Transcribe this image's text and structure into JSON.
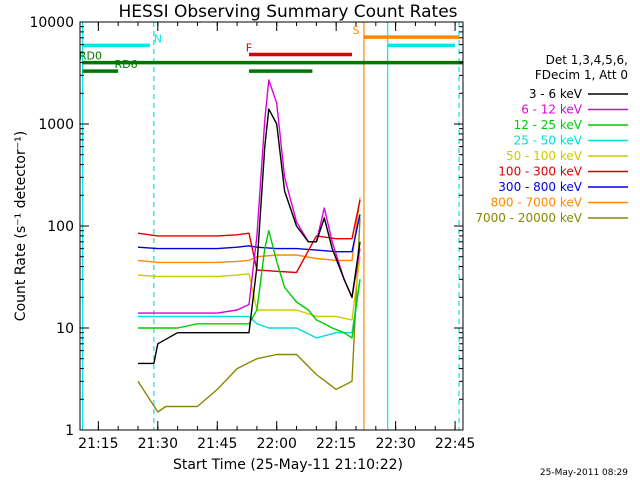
{
  "chart_data": {
    "type": "line",
    "title": "HESSI Observing Summary Count Rates",
    "xlabel": "Start Time (25-May-11 21:10:22)",
    "ylabel": "Count Rate (s⁻¹ detector⁻¹)",
    "y_scale": "log",
    "ylim": [
      1,
      10000
    ],
    "xlim": [
      "21:10:22",
      "22:47"
    ],
    "x_ticks": [
      "21:15",
      "21:30",
      "21:45",
      "22:00",
      "22:15",
      "22:30",
      "22:45"
    ],
    "y_ticks": [
      "1",
      "10",
      "100",
      "1000",
      "10000"
    ],
    "legend_header": [
      "Det 1,3,4,5,6,",
      "FDecim 1, Att 0"
    ],
    "legend_position": "right",
    "timestamp": "25-May-2011 08:29",
    "series": [
      {
        "name": "3 - 6 keV",
        "color": "#000000",
        "x": [
          "21:25",
          "21:29",
          "21:30",
          "21:35",
          "21:40",
          "21:45",
          "21:50",
          "21:53",
          "21:55",
          "21:57",
          "21:58",
          "22:00",
          "22:02",
          "22:05",
          "22:08",
          "22:10",
          "22:12",
          "22:14",
          "22:17",
          "22:19",
          "22:21"
        ],
        "values": [
          4.5,
          4.5,
          7,
          9,
          9,
          9,
          9,
          9,
          40,
          600,
          1400,
          1000,
          220,
          100,
          70,
          70,
          120,
          60,
          30,
          20,
          70
        ]
      },
      {
        "name": "6 - 12 keV",
        "color": "#dd00dd",
        "x": [
          "21:25",
          "21:30",
          "21:35",
          "21:40",
          "21:45",
          "21:50",
          "21:53",
          "21:55",
          "21:57",
          "21:58",
          "22:00",
          "22:02",
          "22:05",
          "22:08",
          "22:10",
          "22:12",
          "22:14",
          "22:17",
          "22:19",
          "22:21"
        ],
        "values": [
          14,
          14,
          14,
          14,
          14,
          15,
          17,
          80,
          1100,
          2700,
          1600,
          300,
          110,
          70,
          70,
          150,
          70,
          30,
          20,
          60
        ]
      },
      {
        "name": "12 - 25 keV",
        "color": "#00cc00",
        "x": [
          "21:25",
          "21:30",
          "21:35",
          "21:40",
          "21:45",
          "21:50",
          "21:53",
          "21:55",
          "21:57",
          "21:58",
          "22:00",
          "22:02",
          "22:05",
          "22:08",
          "22:10",
          "22:12",
          "22:14",
          "22:17",
          "22:19",
          "22:21"
        ],
        "values": [
          10,
          10,
          10,
          11,
          11,
          11,
          11,
          15,
          60,
          90,
          45,
          25,
          18,
          15,
          12,
          11,
          10,
          9,
          8,
          30
        ]
      },
      {
        "name": "25 - 50 keV",
        "color": "#00dddd",
        "x": [
          "21:25",
          "21:30",
          "21:35",
          "21:40",
          "21:45",
          "21:50",
          "21:53",
          "21:55",
          "21:58",
          "22:00",
          "22:05",
          "22:10",
          "22:15",
          "22:19",
          "22:21"
        ],
        "values": [
          13,
          13,
          13,
          13,
          13,
          13,
          13,
          11,
          10,
          10,
          10,
          8,
          9,
          9,
          30
        ]
      },
      {
        "name": "50 - 100 keV",
        "color": "#cccc00",
        "x": [
          "21:25",
          "21:30",
          "21:35",
          "21:40",
          "21:45",
          "21:50",
          "21:53",
          "21:55",
          "22:00",
          "22:05",
          "22:10",
          "22:15",
          "22:19",
          "22:21"
        ],
        "values": [
          33,
          32,
          32,
          32,
          32,
          33,
          34,
          15,
          15,
          15,
          13,
          13,
          12,
          50
        ]
      },
      {
        "name": "100 - 300 keV",
        "color": "#dd0000",
        "x": [
          "21:25",
          "21:30",
          "21:35",
          "21:40",
          "21:45",
          "21:50",
          "21:53",
          "21:55",
          "22:00",
          "22:05",
          "22:10",
          "22:15",
          "22:19",
          "22:21"
        ],
        "values": [
          85,
          80,
          80,
          80,
          80,
          82,
          85,
          37,
          36,
          35,
          80,
          75,
          75,
          180
        ]
      },
      {
        "name": "300 - 800 keV",
        "color": "#0000dd",
        "x": [
          "21:25",
          "21:30",
          "21:35",
          "21:40",
          "21:45",
          "21:50",
          "21:53",
          "21:55",
          "22:00",
          "22:05",
          "22:10",
          "22:15",
          "22:19",
          "22:21"
        ],
        "values": [
          62,
          60,
          60,
          60,
          60,
          62,
          64,
          62,
          60,
          60,
          58,
          56,
          56,
          130
        ]
      },
      {
        "name": "800 - 7000 keV",
        "color": "#ff8800",
        "x": [
          "21:25",
          "21:30",
          "21:35",
          "21:40",
          "21:45",
          "21:50",
          "21:53",
          "21:55",
          "22:00",
          "22:05",
          "22:10",
          "22:15",
          "22:19",
          "22:21"
        ],
        "values": [
          46,
          44,
          44,
          44,
          44,
          45,
          46,
          50,
          52,
          52,
          48,
          46,
          46,
          190
        ]
      },
      {
        "name": "7000 - 20000 keV",
        "color": "#888800",
        "x": [
          "21:25",
          "21:30",
          "21:32",
          "21:35",
          "21:40",
          "21:45",
          "21:50",
          "21:55",
          "22:00",
          "22:05",
          "22:10",
          "22:15",
          "22:19",
          "22:21"
        ],
        "values": [
          3,
          1.5,
          1.7,
          1.7,
          1.7,
          2.5,
          4,
          5,
          5.5,
          5.5,
          3.5,
          2.5,
          3,
          120
        ]
      }
    ],
    "flag_bars": [
      {
        "label": "N",
        "color": "#00e8e8",
        "level": 5900,
        "label_x": "21:30",
        "segments": [
          [
            "21:11",
            "21:28"
          ],
          [
            "22:28",
            "22:45"
          ]
        ]
      },
      {
        "label": "F",
        "color": "#dd0000",
        "level": 4800,
        "label_x": "21:53",
        "segments": [
          [
            "21:53",
            "22:19"
          ]
        ]
      },
      {
        "label": "S",
        "color": "#ff8800",
        "level": 7100,
        "label_x": "22:20",
        "segments": [
          [
            "22:22",
            "22:46"
          ]
        ]
      },
      {
        "label": "RD0",
        "color": "#007700",
        "level": 4000,
        "label_x": "21:13",
        "segments": [
          [
            "21:11",
            "22:47"
          ]
        ]
      },
      {
        "label": "RD6",
        "color": "#007700",
        "level": 3300,
        "label_x": "21:22",
        "segments": [
          [
            "21:11",
            "21:20"
          ],
          [
            "21:53",
            "22:09"
          ]
        ]
      }
    ],
    "vertical_lines": [
      {
        "x": "21:11",
        "color": "#00e8e8",
        "style": "solid"
      },
      {
        "x": "21:29",
        "color": "#00e8e8",
        "style": "dashed"
      },
      {
        "x": "22:22",
        "color": "#ff8800",
        "style": "solid"
      },
      {
        "x": "22:28",
        "color": "#00e8e8",
        "style": "solid"
      },
      {
        "x": "22:46",
        "color": "#00e8e8",
        "style": "dashed"
      }
    ]
  }
}
